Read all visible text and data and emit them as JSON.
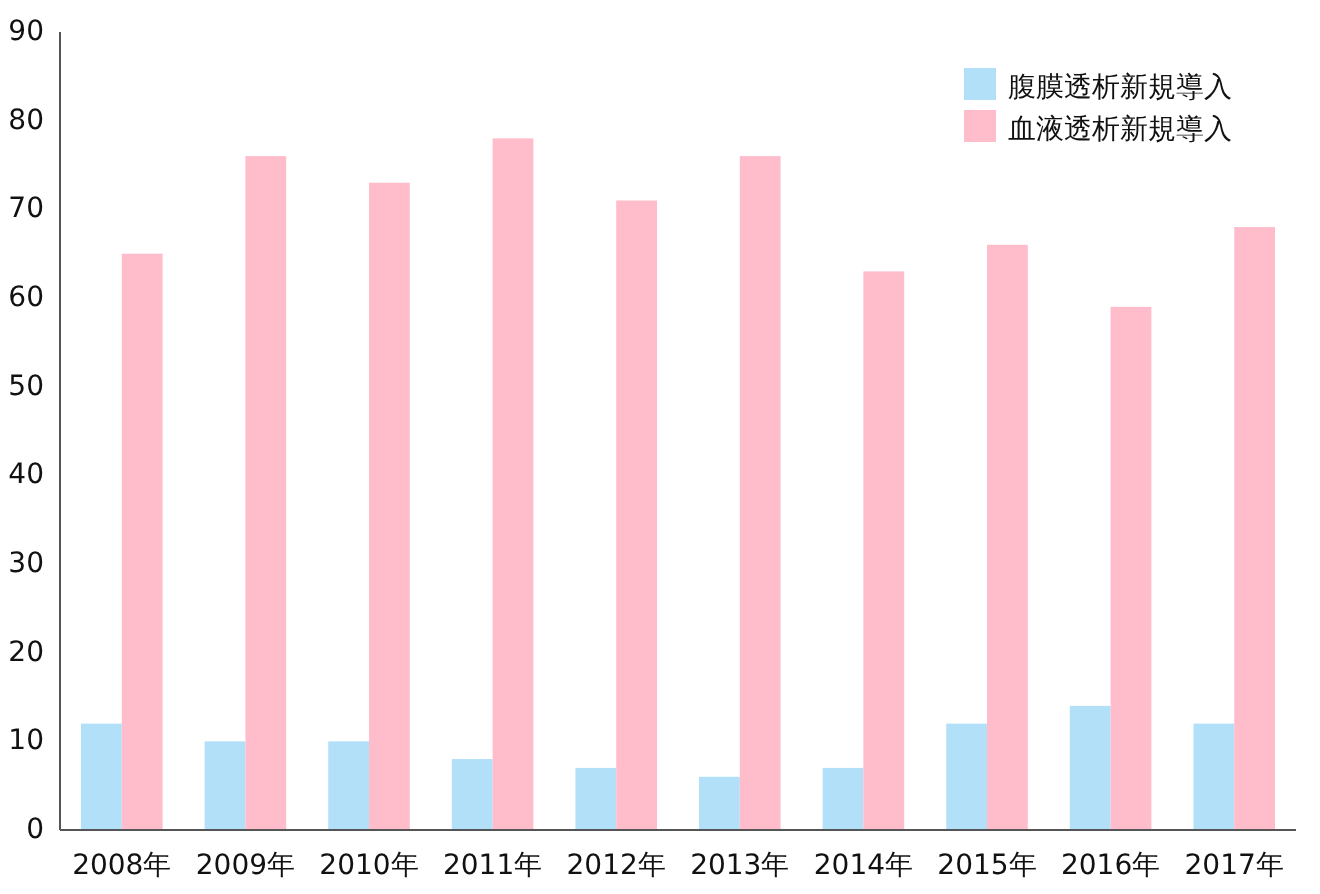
{
  "chart_data": {
    "type": "bar",
    "categories": [
      "2008年",
      "2009年",
      "2010年",
      "2011年",
      "2012年",
      "2013年",
      "2014年",
      "2015年",
      "2016年",
      "2017年"
    ],
    "series": [
      {
        "name": "腹膜透析新規導入",
        "color": "#b3e0f9",
        "values": [
          12,
          10,
          10,
          8,
          7,
          6,
          7,
          12,
          14,
          12
        ]
      },
      {
        "name": "血液透析新規導入",
        "color": "#ffbccb",
        "values": [
          65,
          76,
          73,
          78,
          71,
          76,
          63,
          66,
          59,
          68
        ]
      }
    ],
    "ylim": [
      0,
      90
    ],
    "yticks": [
      0,
      10,
      20,
      30,
      40,
      50,
      60,
      70,
      80,
      90
    ],
    "grid": false,
    "legend": "top right"
  }
}
